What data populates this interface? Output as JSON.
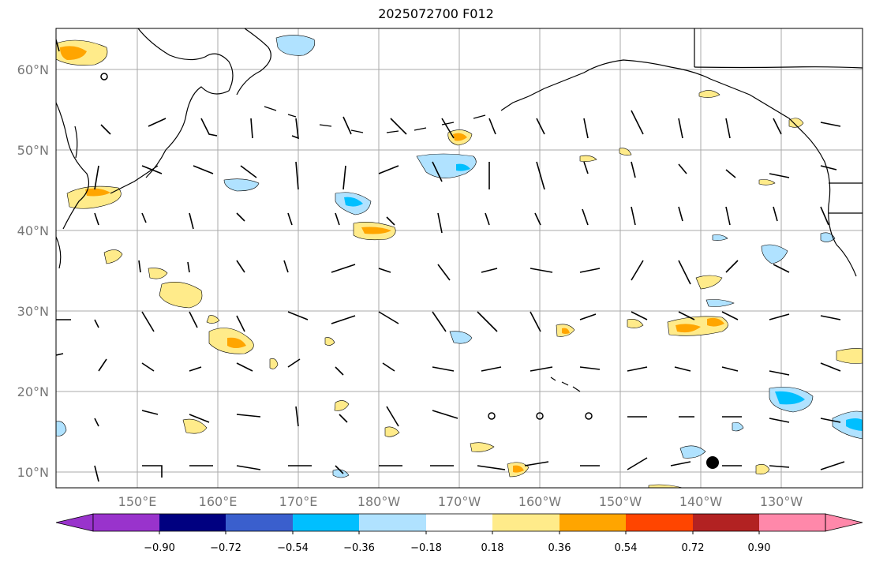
{
  "title": "2025072700 F012",
  "lat_labels": [
    "60°N",
    "50°N",
    "40°N",
    "30°N",
    "20°N",
    "10°N"
  ],
  "lon_labels": [
    "150°E",
    "160°E",
    "170°E",
    "180°W",
    "170°W",
    "160°W",
    "150°W",
    "140°W",
    "130°W"
  ],
  "colorbar": {
    "ticks": [
      "−0.90",
      "−0.72",
      "−0.54",
      "−0.36",
      "−0.18",
      "0.18",
      "0.36",
      "0.54",
      "0.72",
      "0.90"
    ],
    "colors": [
      "#9933cc",
      "#000080",
      "#3a5fcd",
      "#00bfff",
      "#b0e2ff",
      "#ffffff",
      "#ffeb8a",
      "#ffa500",
      "#ff4500",
      "#b22222",
      "#ff88aa"
    ]
  },
  "legend_colors": {
    "positive_light": "#ffeb8a",
    "positive_mid": "#ffa500",
    "negative_light": "#b0e2ff",
    "negative_mid": "#00bfff"
  }
}
